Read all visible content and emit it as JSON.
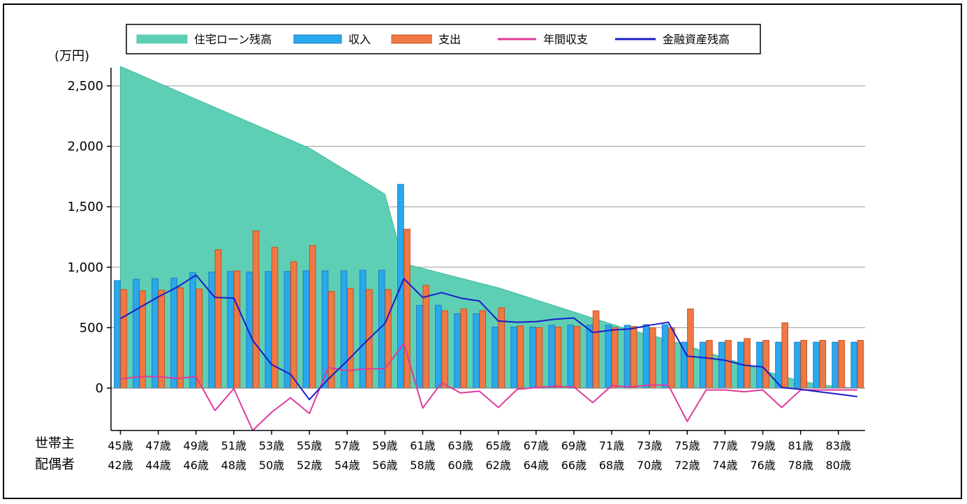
{
  "chart_data": {
    "type": "bar",
    "unit_label": "(万円)",
    "ylim": [
      -350,
      2650
    ],
    "yticks": [
      0,
      500,
      1000,
      1500,
      2000,
      2500
    ],
    "ytick_labels": [
      "0",
      "500",
      "1,000",
      "1,500",
      "2,000",
      "2,500"
    ],
    "row_labels": [
      "世帯主",
      "配偶者"
    ],
    "x_head": [
      "45歳",
      "46歳",
      "47歳",
      "48歳",
      "49歳",
      "50歳",
      "51歳",
      "52歳",
      "53歳",
      "54歳",
      "55歳",
      "56歳",
      "57歳",
      "58歳",
      "59歳",
      "60歳",
      "61歳",
      "62歳",
      "63歳",
      "64歳",
      "65歳",
      "66歳",
      "67歳",
      "68歳",
      "69歳",
      "70歳",
      "71歳",
      "72歳",
      "73歳",
      "74歳",
      "75歳",
      "76歳",
      "77歳",
      "78歳",
      "79歳",
      "80歳",
      "81歳",
      "82歳",
      "83歳",
      "84歳"
    ],
    "x_spouse": [
      "42歳",
      "43歳",
      "44歳",
      "45歳",
      "46歳",
      "47歳",
      "48歳",
      "49歳",
      "50歳",
      "51歳",
      "52歳",
      "53歳",
      "54歳",
      "55歳",
      "56歳",
      "57歳",
      "58歳",
      "59歳",
      "60歳",
      "61歳",
      "62歳",
      "63歳",
      "64歳",
      "65歳",
      "66歳",
      "67歳",
      "68歳",
      "69歳",
      "70歳",
      "71歳",
      "72歳",
      "73歳",
      "74歳",
      "75歳",
      "76歳",
      "77歳",
      "78歳",
      "79歳",
      "80歳",
      "81歳"
    ],
    "grid": true,
    "legend_position": "top",
    "series": [
      {
        "name": "住宅ローン残高",
        "kind": "area",
        "color": "#5ecfb5",
        "values": [
          2660,
          2593,
          2525,
          2458,
          2390,
          2323,
          2255,
          2188,
          2120,
          2053,
          1985,
          1890,
          1795,
          1700,
          1605,
          1030,
          990,
          950,
          910,
          870,
          830,
          780,
          730,
          680,
          630,
          580,
          530,
          480,
          440,
          400,
          350,
          300,
          250,
          200,
          150,
          100,
          60,
          30,
          10,
          0
        ]
      },
      {
        "name": "収入",
        "kind": "bar",
        "color": "#29a8ee",
        "values": [
          890,
          900,
          905,
          910,
          955,
          960,
          965,
          960,
          965,
          965,
          970,
          970,
          970,
          975,
          975,
          1685,
          685,
          685,
          615,
          615,
          505,
          505,
          505,
          520,
          520,
          520,
          520,
          520,
          525,
          525,
          380,
          380,
          380,
          380,
          380,
          380,
          380,
          380,
          380,
          380
        ]
      },
      {
        "name": "支出",
        "kind": "bar",
        "color": "#f07845",
        "values": [
          815,
          805,
          810,
          830,
          820,
          1145,
          970,
          1300,
          1165,
          1045,
          1180,
          800,
          825,
          815,
          815,
          1315,
          850,
          640,
          655,
          640,
          665,
          515,
          500,
          505,
          510,
          640,
          500,
          510,
          500,
          500,
          655,
          395,
          395,
          410,
          395,
          540,
          395,
          395,
          395,
          395
        ]
      },
      {
        "name": "年間収支",
        "kind": "line",
        "color": "#e03a9a",
        "values": [
          75,
          95,
          95,
          80,
          95,
          -185,
          -5,
          -350,
          -200,
          -80,
          -210,
          170,
          145,
          160,
          160,
          370,
          -165,
          45,
          -40,
          -25,
          -160,
          -10,
          5,
          15,
          10,
          -120,
          20,
          10,
          25,
          25,
          -275,
          -15,
          -15,
          -30,
          -15,
          -160,
          -15,
          -15,
          -15,
          -15
        ]
      },
      {
        "name": "金融資産残高",
        "kind": "line",
        "color": "#1c1cc8",
        "values": [
          575,
          665,
          755,
          835,
          935,
          750,
          745,
          395,
          195,
          115,
          -95,
          75,
          225,
          385,
          535,
          905,
          750,
          790,
          745,
          720,
          555,
          545,
          550,
          570,
          580,
          460,
          480,
          490,
          520,
          545,
          265,
          250,
          230,
          190,
          175,
          5,
          -10,
          -30,
          -50,
          -70
        ]
      }
    ]
  }
}
